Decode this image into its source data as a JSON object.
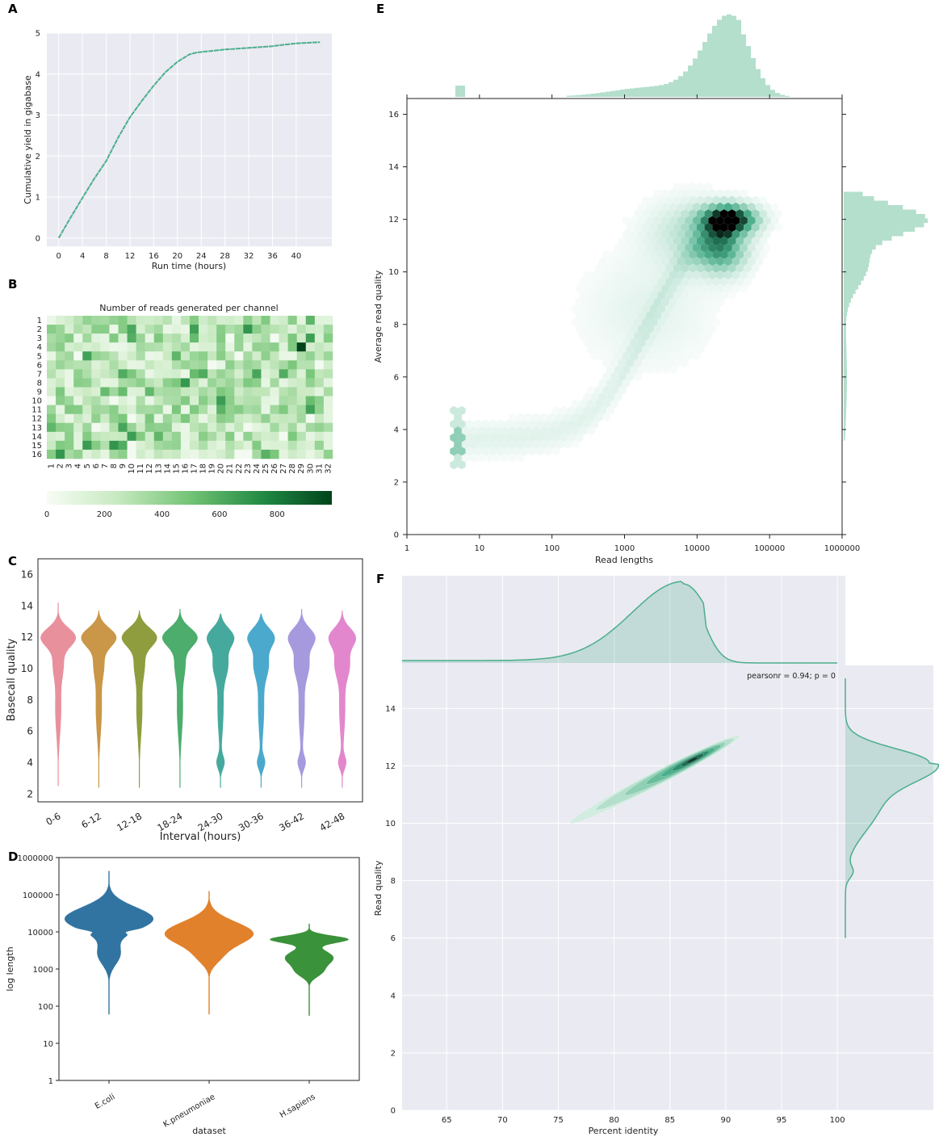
{
  "panels": {
    "a": {
      "letter": "A",
      "chart_data": {
        "type": "line",
        "title": "",
        "xlabel": "Run time (hours)",
        "ylabel": "Cumulative yield in gigabase",
        "xlim": [
          -2,
          46
        ],
        "ylim": [
          -0.2,
          5
        ],
        "xticks": [
          0,
          4,
          8,
          12,
          16,
          20,
          24,
          28,
          32,
          36,
          40
        ],
        "yticks": [
          0,
          1,
          2,
          3,
          4,
          5
        ],
        "color": "#4cae8c",
        "series": [
          {
            "name": "yield",
            "x": [
              0,
              2,
              4,
              6,
              8,
              10,
              12,
              14,
              16,
              18,
              20,
              22,
              23,
              24,
              28,
              32,
              36,
              37,
              40,
              44
            ],
            "y": [
              0,
              0.5,
              0.98,
              1.45,
              1.88,
              2.45,
              2.95,
              3.35,
              3.72,
              4.05,
              4.3,
              4.48,
              4.52,
              4.54,
              4.6,
              4.64,
              4.68,
              4.7,
              4.75,
              4.78
            ]
          }
        ]
      }
    },
    "b": {
      "letter": "B",
      "chart_data": {
        "type": "heatmap",
        "title": "Number of reads generated per channel",
        "rows": [
          "1",
          "2",
          "3",
          "4",
          "5",
          "6",
          "7",
          "8",
          "9",
          "10",
          "11",
          "12",
          "13",
          "14",
          "15",
          "16"
        ],
        "cols": [
          "1",
          "2",
          "3",
          "4",
          "5",
          "6",
          "7",
          "8",
          "9",
          "10",
          "11",
          "12",
          "13",
          "14",
          "15",
          "16",
          "17",
          "18",
          "19",
          "20",
          "21",
          "22",
          "23",
          "24",
          "25",
          "26",
          "27",
          "28",
          "29",
          "30",
          "31",
          "32"
        ],
        "vmin": 0,
        "vmax": 990,
        "colorbar_ticks": [
          0,
          200,
          400,
          600,
          800
        ],
        "colormap": "Greens",
        "values_note": "per-cell read counts mostly 100-500, a few up to ~990 (row 4, col 29)"
      }
    },
    "c": {
      "letter": "C",
      "chart_data": {
        "type": "violin",
        "xlabel": "Interval (hours)",
        "ylabel": "Basecall quality",
        "ylim": [
          1.5,
          17
        ],
        "yticks": [
          2,
          4,
          6,
          8,
          10,
          12,
          14,
          16
        ],
        "categories": [
          "0-6",
          "6-12",
          "12-18",
          "18-24",
          "24-30",
          "30-36",
          "36-42",
          "42-48"
        ],
        "colors": [
          "#e8919d",
          "#ca9647",
          "#909d3e",
          "#4cad6c",
          "#45aa9d",
          "#4aa9cc",
          "#a799dd",
          "#e287cd"
        ],
        "series": [
          {
            "name": "0-6",
            "min": 2.5,
            "max": 14.2,
            "mode": 12
          },
          {
            "name": "6-12",
            "min": 2.4,
            "max": 13.7,
            "mode": 12
          },
          {
            "name": "12-18",
            "min": 2.4,
            "max": 13.7,
            "mode": 12
          },
          {
            "name": "18-24",
            "min": 2.4,
            "max": 13.8,
            "mode": 12
          },
          {
            "name": "24-30",
            "min": 2.4,
            "max": 13.5,
            "mode": 12
          },
          {
            "name": "30-36",
            "min": 2.4,
            "max": 13.5,
            "mode": 12
          },
          {
            "name": "36-42",
            "min": 2.4,
            "max": 13.8,
            "mode": 12
          },
          {
            "name": "42-48",
            "min": 2.4,
            "max": 13.7,
            "mode": 12
          }
        ]
      }
    },
    "d": {
      "letter": "D",
      "chart_data": {
        "type": "violin",
        "xlabel": "dataset",
        "ylabel": "log length",
        "yscale": "log",
        "ylim": [
          1,
          1000000
        ],
        "yticks": [
          1,
          10,
          100,
          1000,
          10000,
          100000,
          1000000
        ],
        "ytick_labels": [
          "1",
          "10",
          "100",
          "1000",
          "10000",
          "100000",
          "1000000"
        ],
        "categories": [
          "E.coli",
          "K.pneumoniae",
          "H.sapiens"
        ],
        "colors": [
          "#3274a1",
          "#e1812c",
          "#3a923a"
        ],
        "series": [
          {
            "name": "E.coli",
            "min": 60,
            "max": 450000
          },
          {
            "name": "K.pneumoniae",
            "min": 60,
            "max": 130000
          },
          {
            "name": "H.sapiens",
            "min": 55,
            "max": 17000
          }
        ]
      }
    },
    "e": {
      "letter": "E",
      "chart_data": {
        "type": "hexbin",
        "xlabel": "Read lengths",
        "ylabel": "Average read quality",
        "xscale": "log",
        "xlim": [
          1,
          1000000
        ],
        "ylim": [
          0,
          16.6
        ],
        "xticks": [
          1,
          10,
          100,
          1000,
          10000,
          100000,
          1000000
        ],
        "xtick_labels": [
          "1",
          "10",
          "100",
          "1000",
          "10000",
          "100000",
          "1000000"
        ],
        "yticks": [
          0,
          2,
          4,
          6,
          8,
          10,
          12,
          14,
          16
        ],
        "color": "#4cae8c",
        "density_peak": {
          "x": 30000,
          "y": 12
        },
        "marginal_x_note": "length histogram peaking near 30000",
        "marginal_y_note": "quality histogram peaking near 12"
      }
    },
    "f": {
      "letter": "F",
      "chart_data": {
        "type": "kde",
        "xlabel": "Percent identity",
        "ylabel": "Read quality",
        "xlim": [
          61,
          108
        ],
        "ylim": [
          0,
          15.5
        ],
        "xticks": [
          65,
          70,
          75,
          80,
          85,
          90,
          95,
          100
        ],
        "yticks": [
          0,
          2,
          4,
          6,
          8,
          10,
          12,
          14
        ],
        "annotation": "pearsonr = 0.94; p = 0",
        "color": "#4cae8c",
        "density_peak": {
          "x": 87,
          "y": 12.2
        },
        "marginal_x_note": "identity density peaking near 86",
        "marginal_y_note": "quality density peaking near 12"
      }
    }
  }
}
